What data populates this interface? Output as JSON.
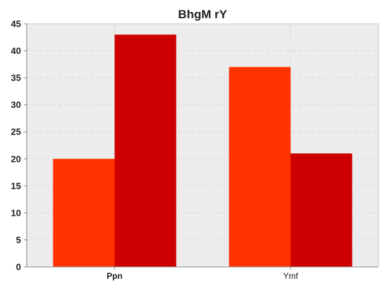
{
  "chart_data": {
    "type": "bar",
    "title": "BhgM rY",
    "categories": [
      "Ppn",
      "Ymf"
    ],
    "category_bold": [
      true,
      false
    ],
    "series": [
      {
        "values": [
          20,
          37
        ],
        "color": "#ff3300"
      },
      {
        "values": [
          43,
          21
        ],
        "color": "#cc0000"
      }
    ],
    "ylim": [
      0,
      45
    ],
    "yticks": [
      "0",
      "5",
      "10",
      "15",
      "20",
      "25",
      "30",
      "35",
      "40",
      "45"
    ],
    "grid": true,
    "colors": {
      "plot_bg": "#ececec",
      "grid": "#d8d8d8",
      "axis": "#888888"
    }
  }
}
